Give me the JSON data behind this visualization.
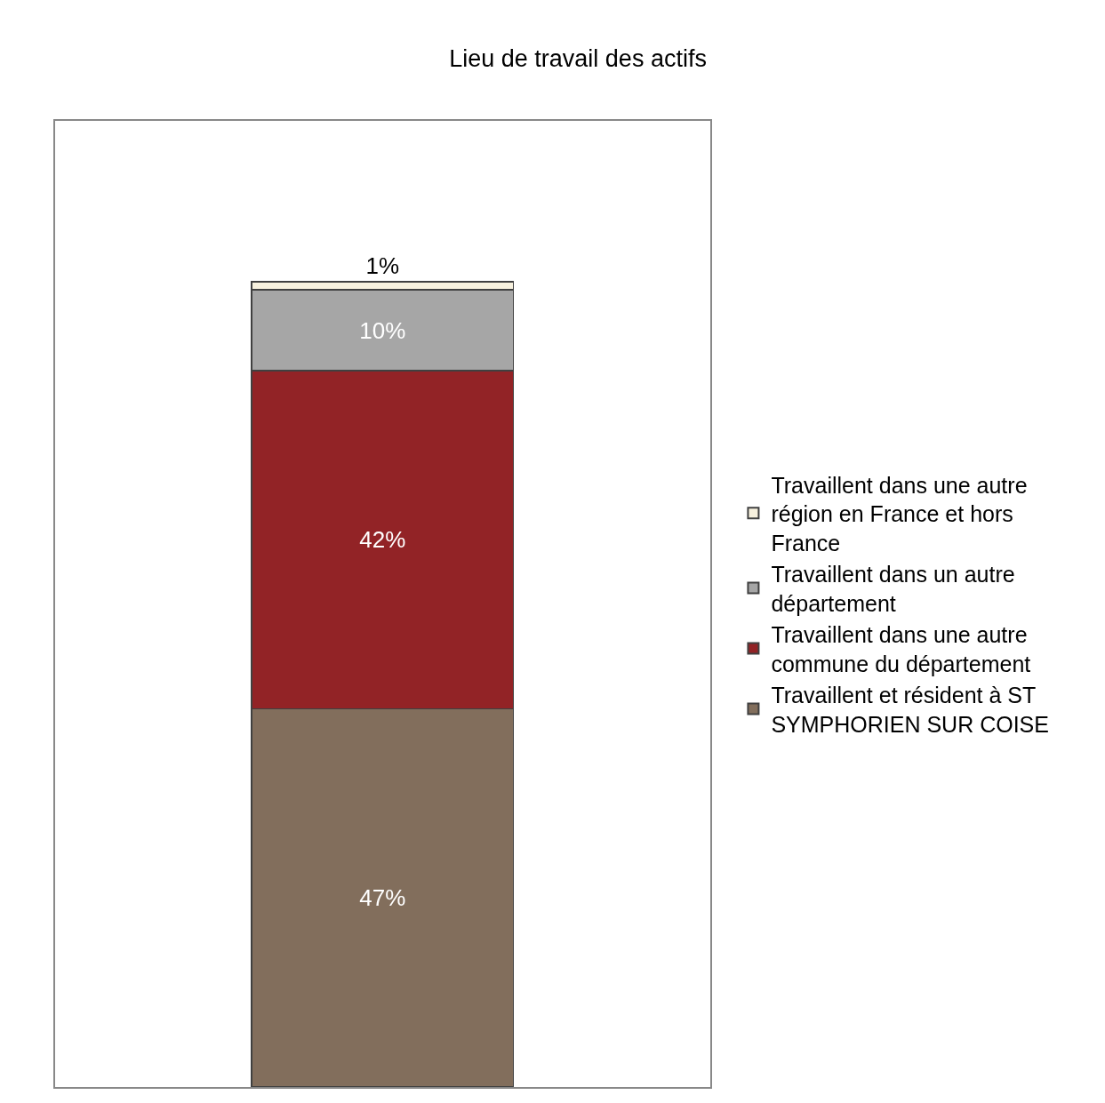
{
  "chart_data": {
    "type": "bar",
    "title": "Lieu de travail des actifs",
    "stacked": true,
    "categories": [
      null
    ],
    "series": [
      {
        "name": "Travaillent et résident à ST SYMPHORIEN SUR COISE",
        "color": "#826e5c",
        "values": [
          47
        ],
        "value_labels": [
          "47%"
        ]
      },
      {
        "name": "Travaillent dans une autre commune du département",
        "color": "#922326",
        "values": [
          42
        ],
        "value_labels": [
          "42%"
        ]
      },
      {
        "name": "Travaillent dans un autre département",
        "color": "#a6a6a6",
        "values": [
          10
        ],
        "value_labels": [
          "10%"
        ]
      },
      {
        "name": "Travaillent dans une autre région en France et hors France",
        "color": "#f7f1de",
        "values": [
          1
        ],
        "value_labels": [
          "1%"
        ]
      }
    ],
    "ylim": [
      0,
      120
    ],
    "tick_labels": false,
    "legend": "right"
  }
}
